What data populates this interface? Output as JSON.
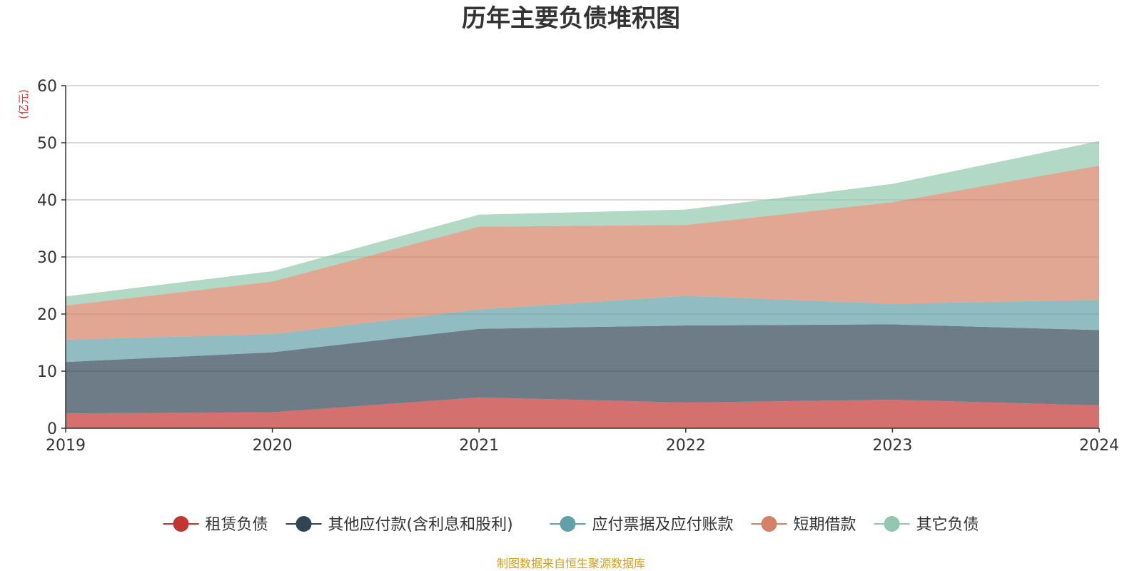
{
  "title": "历年主要负债堆积图",
  "source_note": "制图数据来自恒生聚源数据库",
  "chart_data": {
    "type": "area",
    "stacked": true,
    "title": "历年主要负债堆积图",
    "y_unit": "(亿元)",
    "ylim": [
      0,
      60
    ],
    "y_ticks": [
      0,
      10,
      20,
      30,
      40,
      50,
      60
    ],
    "grid": true,
    "legend_position": "bottom",
    "x": [
      "2019",
      "2020",
      "2021",
      "2022",
      "2023",
      "2024"
    ],
    "series": [
      {
        "name": "租赁负债",
        "color": "#c23531",
        "values": [
          2.6,
          2.8,
          5.4,
          4.5,
          5.0,
          4.0
        ]
      },
      {
        "name": "其他应付款(含利息和股利)",
        "color": "#2f4554",
        "values": [
          9.0,
          10.5,
          12.0,
          13.5,
          13.2,
          13.2
        ]
      },
      {
        "name": "应付票据及应付账款",
        "color": "#61a0a8",
        "values": [
          3.9,
          3.2,
          3.4,
          5.2,
          3.6,
          5.3
        ]
      },
      {
        "name": "短期借款",
        "color": "#d48265",
        "values": [
          6.0,
          9.2,
          14.5,
          12.4,
          17.8,
          23.5
        ]
      },
      {
        "name": "其它负债",
        "color": "#91c7ae",
        "values": [
          1.6,
          1.8,
          2.1,
          2.7,
          3.2,
          4.3
        ]
      }
    ]
  }
}
